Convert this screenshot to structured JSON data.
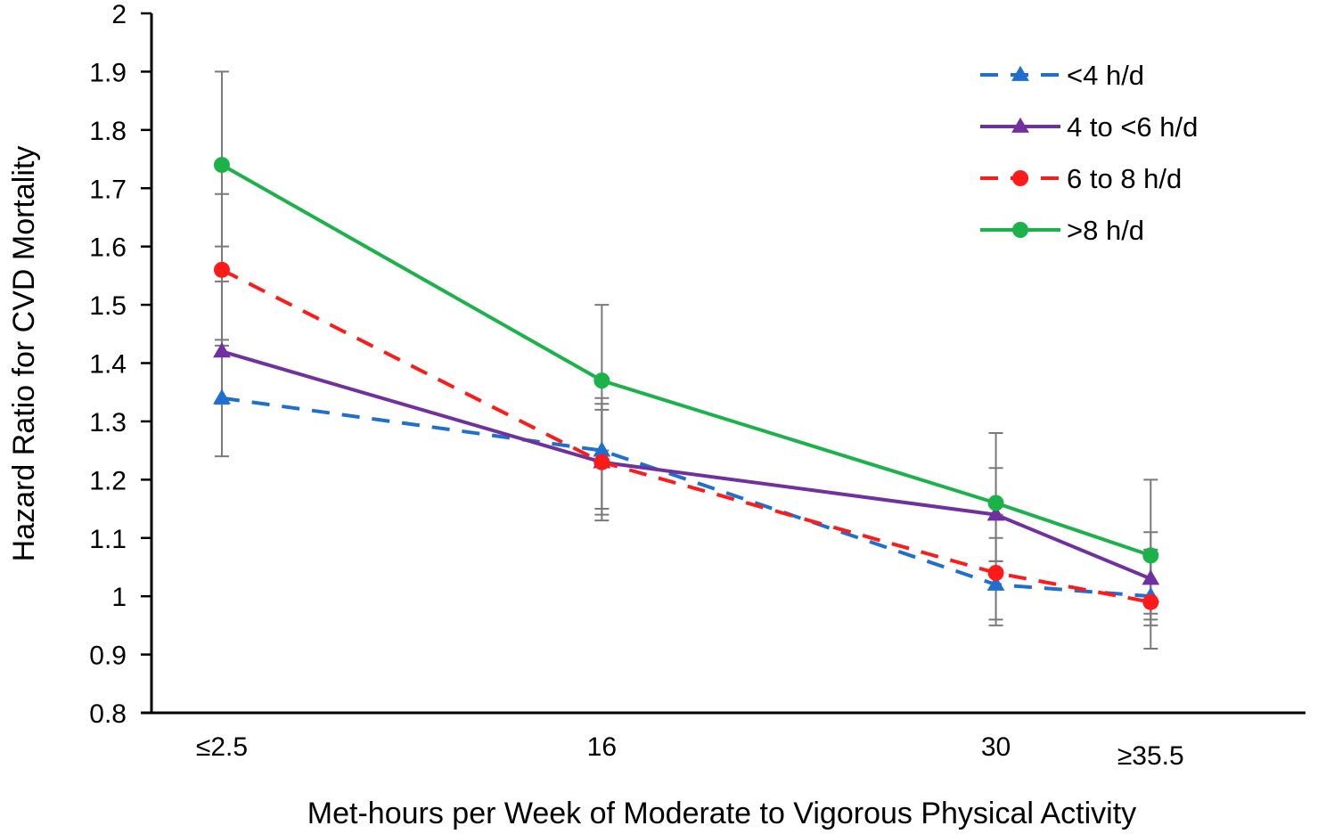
{
  "chart_data": {
    "type": "line",
    "title": "",
    "xlabel": "Met-hours per Week of Moderate to Vigorous Physical Activity",
    "ylabel": "Hazard Ratio for CVD Mortality",
    "x": [
      2.5,
      16,
      30,
      35.5
    ],
    "x_tick_labels": [
      "≤2.5",
      "16",
      "30",
      "≥35.5"
    ],
    "xlim": [
      0,
      41
    ],
    "ylim": [
      0.8,
      2.0
    ],
    "y_ticks": [
      "0.8",
      "0.9",
      "1",
      "1.1",
      "1.2",
      "1.3",
      "1.4",
      "1.5",
      "1.6",
      "1.7",
      "1.8",
      "1.9",
      "2"
    ],
    "grid": false,
    "legend_position": "top-right",
    "series": [
      {
        "name": "<4 h/d",
        "color": "#1f6fd0",
        "dashed": true,
        "marker": "triangle",
        "values": [
          1.34,
          1.25,
          1.02,
          1.0
        ],
        "ci_low": [
          1.24,
          1.15,
          0.96,
          0.95
        ],
        "ci_high": [
          1.44,
          1.34,
          1.1,
          1.08
        ]
      },
      {
        "name": "4 to <6 h/d",
        "color": "#7030a0",
        "dashed": false,
        "marker": "triangle",
        "values": [
          1.42,
          1.23,
          1.14,
          1.03
        ],
        "ci_low": [
          1.33,
          1.14,
          1.06,
          0.96
        ],
        "ci_high": [
          1.54,
          1.33,
          1.22,
          1.11
        ]
      },
      {
        "name": "6 to 8 h/d",
        "color": "#ff1a1a",
        "dashed": true,
        "marker": "circle",
        "values": [
          1.56,
          1.23,
          1.04,
          0.99
        ],
        "ci_low": [
          1.43,
          1.13,
          0.95,
          0.91
        ],
        "ci_high": [
          1.69,
          1.32,
          1.14,
          1.08
        ]
      },
      {
        "name": ">8 h/d",
        "color": "#1cb24a",
        "dashed": false,
        "marker": "circle",
        "values": [
          1.74,
          1.37,
          1.16,
          1.07
        ],
        "ci_low": [
          1.6,
          1.25,
          1.06,
          0.97
        ],
        "ci_high": [
          1.9,
          1.5,
          1.28,
          1.2
        ]
      }
    ]
  }
}
